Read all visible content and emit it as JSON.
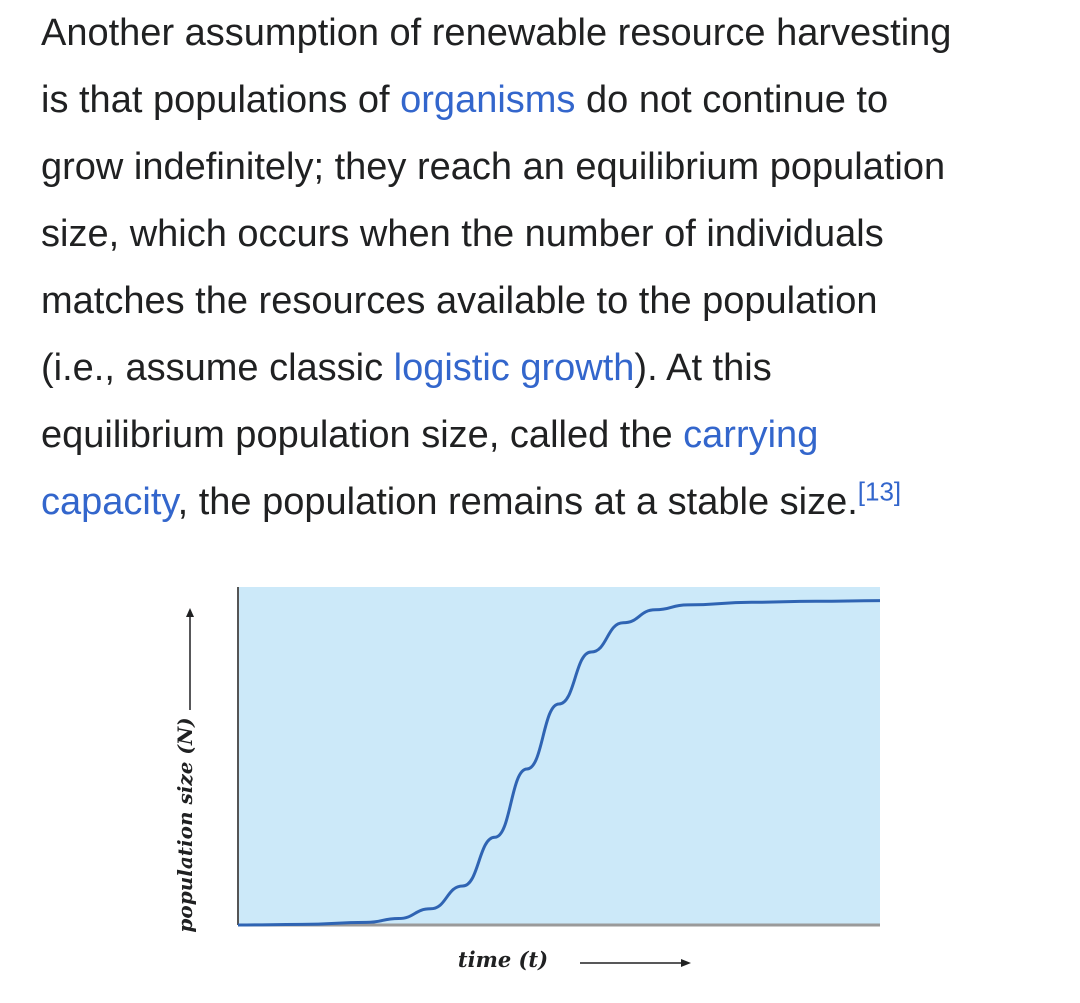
{
  "article": {
    "lines": [
      [
        {
          "text": "Another assumption of renewable resource harvesting",
          "link": false
        }
      ],
      [
        {
          "text": "is that populations of ",
          "link": false
        },
        {
          "text": "organisms",
          "link": true
        },
        {
          "text": " do not continue to",
          "link": false
        }
      ],
      [
        {
          "text": "grow indefinitely; they reach an equilibrium population",
          "link": false
        }
      ],
      [
        {
          "text": "size, which occurs when the number of individuals",
          "link": false
        }
      ],
      [
        {
          "text": "matches the resources available to the population",
          "link": false
        }
      ],
      [
        {
          "text": "(i.e., assume classic ",
          "link": false
        },
        {
          "text": "logistic growth",
          "link": true
        },
        {
          "text": "). At this",
          "link": false
        }
      ],
      [
        {
          "text": "equilibrium population size, called the ",
          "link": false
        },
        {
          "text": "carrying",
          "link": true
        }
      ],
      [
        {
          "text": "capacity",
          "link": true
        },
        {
          "text": ", the population remains at a stable size.",
          "link": false
        }
      ]
    ],
    "reference": "[13]"
  },
  "colors": {
    "text": "#202122",
    "link": "#3366cc",
    "plot_background": "#cce9f9",
    "curve": "#2f64b3"
  },
  "chart_data": {
    "type": "line",
    "title": "",
    "xlabel": "time (t)",
    "ylabel": "population size (N)",
    "curve_shape": "logistic (sigmoid)",
    "x": [
      0,
      10,
      20,
      25,
      30,
      35,
      40,
      45,
      50,
      55,
      60,
      65,
      70,
      80,
      90,
      100
    ],
    "series": [
      {
        "values": [
          0,
          0.2,
          0.8,
          2,
          5,
          12,
          27,
          48,
          68,
          84,
          93,
          97,
          98.5,
          99.3,
          99.6,
          99.8
        ]
      }
    ],
    "xlim": [
      0,
      100
    ],
    "ylim": [
      0,
      100
    ],
    "grid": false,
    "legend": "none"
  }
}
